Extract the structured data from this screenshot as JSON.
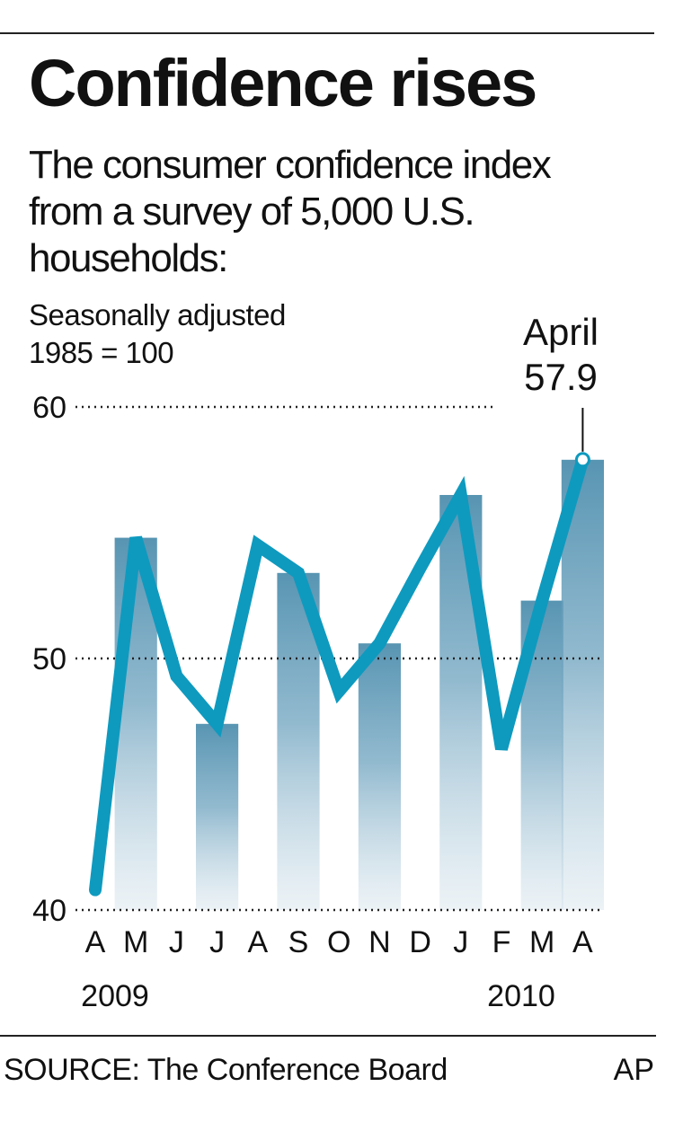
{
  "title": "Confidence rises",
  "subtitle": "The consumer confidence index from a survey of 5,000 U.S. households:",
  "note_line1": "Seasonally adjusted",
  "note_line2": "1985 = 100",
  "source": "SOURCE: The Conference Board",
  "credit": "AP",
  "colors": {
    "line": "#0e9abf",
    "band": "#4f8fae",
    "text": "#111111"
  },
  "chart_data": {
    "type": "line",
    "categories": [
      "A",
      "M",
      "J",
      "J",
      "A",
      "S",
      "O",
      "N",
      "D",
      "J",
      "F",
      "M",
      "A"
    ],
    "year_labels": [
      {
        "label": "2009",
        "index": 0
      },
      {
        "label": "2010",
        "index": 10
      }
    ],
    "values": [
      40.8,
      54.8,
      49.3,
      47.4,
      54.5,
      53.4,
      48.7,
      50.6,
      53.6,
      56.5,
      46.4,
      52.3,
      57.9
    ],
    "ylim": [
      40,
      60
    ],
    "yticks": [
      40,
      50,
      60
    ],
    "grid": "dotted at 50 and 60",
    "callout": {
      "label": "April",
      "value": "57.9",
      "index": 12
    }
  }
}
